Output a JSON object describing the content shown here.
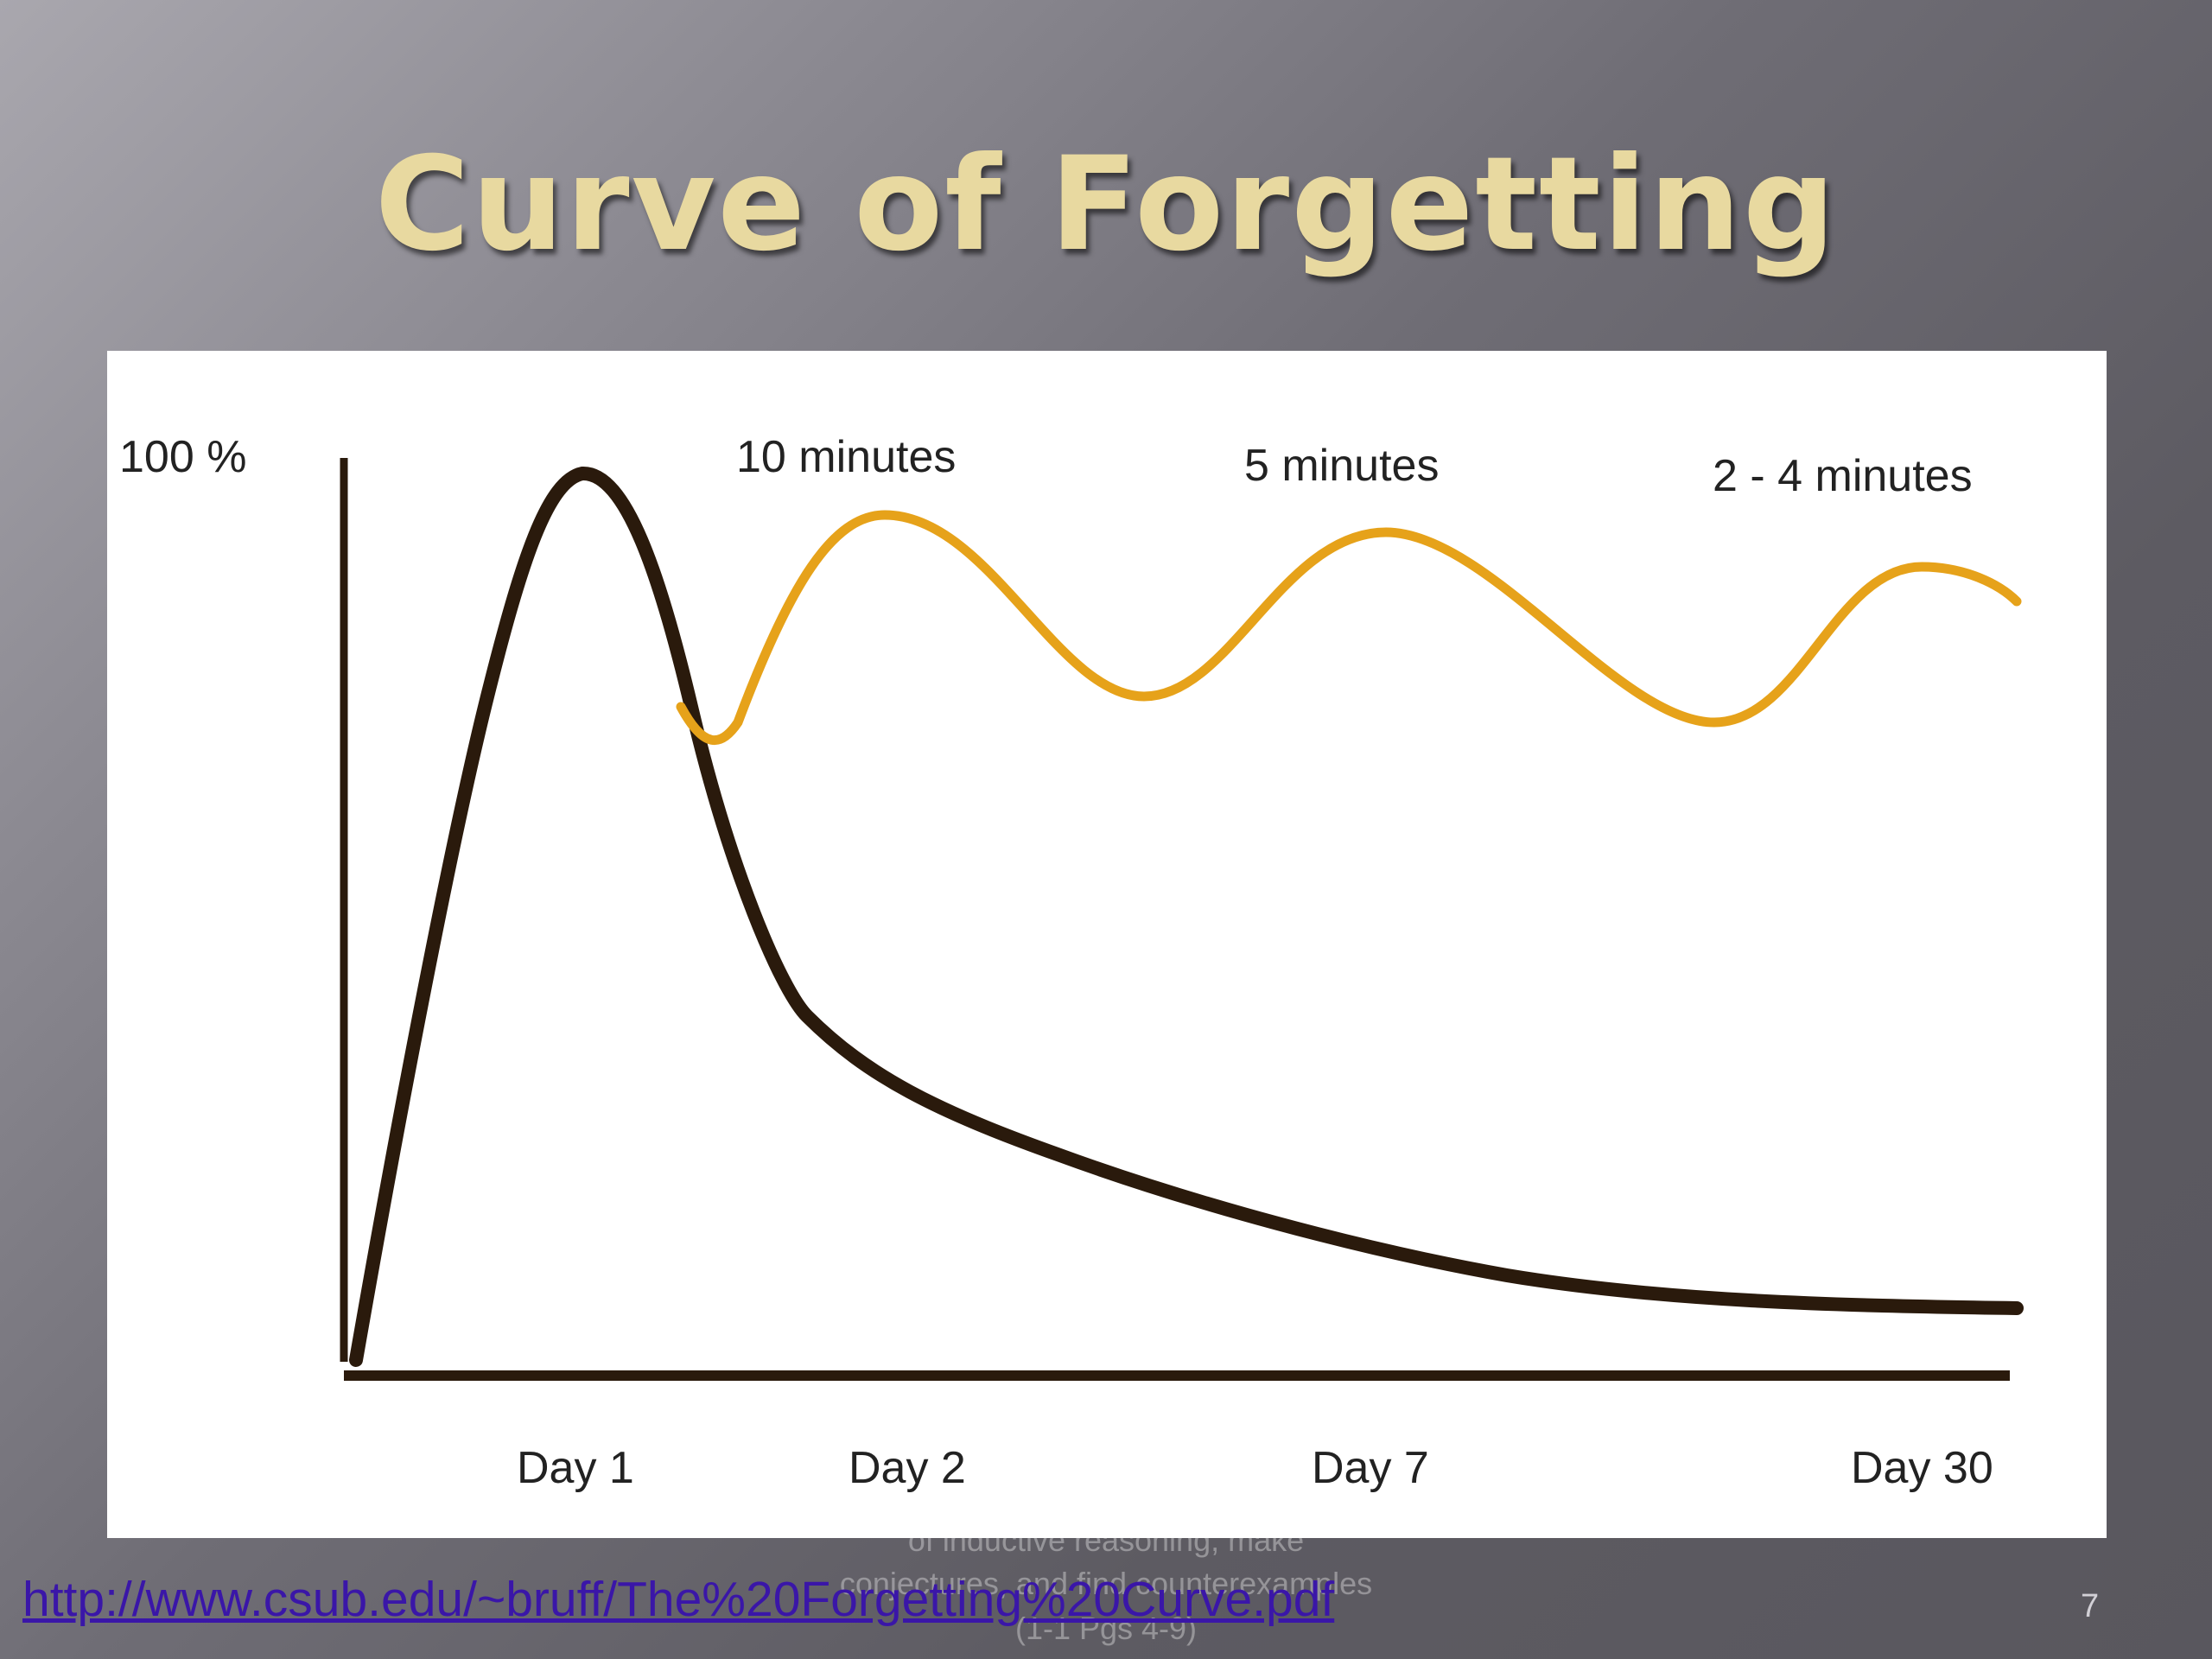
{
  "slide": {
    "title": "Curve of Forgetting",
    "footer_lines": [
      "of inductive reasoning, make",
      "conjectures, and find counterexamples",
      "(1-1 Pgs 4-9)"
    ],
    "source_link": "http://www.csub.edu/~bruff/The%20Forgetting%20Curve.pdf",
    "page_number": "7"
  },
  "diagram": {
    "y_axis_label": "100 %",
    "review_labels": [
      "10 minutes",
      "5 minutes",
      "2 - 4 minutes"
    ],
    "x_labels": [
      "Day 1",
      "Day 2",
      "Day 7",
      "Day 30"
    ],
    "colors": {
      "forgetting_curve": "#2a1a0c",
      "review_curve": "#e6a21a",
      "axis": "#2a1a0c"
    }
  }
}
